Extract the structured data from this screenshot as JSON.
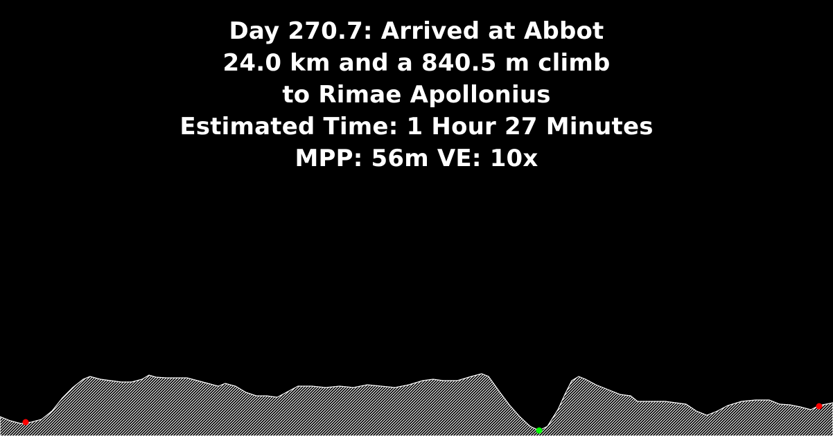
{
  "caption": {
    "line1": "Day 270.7: Arrived at Abbot",
    "line2": "24.0 km and a 840.5 m climb",
    "line3": "to Rimae Apollonius",
    "line4": "Estimated Time: 1 Hour 27 Minutes",
    "line5": "MPP: 56m VE: 10x"
  },
  "colors": {
    "background": "#000000",
    "text": "#ffffff",
    "terrain_fill": "#ffffff",
    "start_marker": "#ff0000",
    "end_marker": "#ff0000",
    "current_marker": "#00ff00"
  }
}
